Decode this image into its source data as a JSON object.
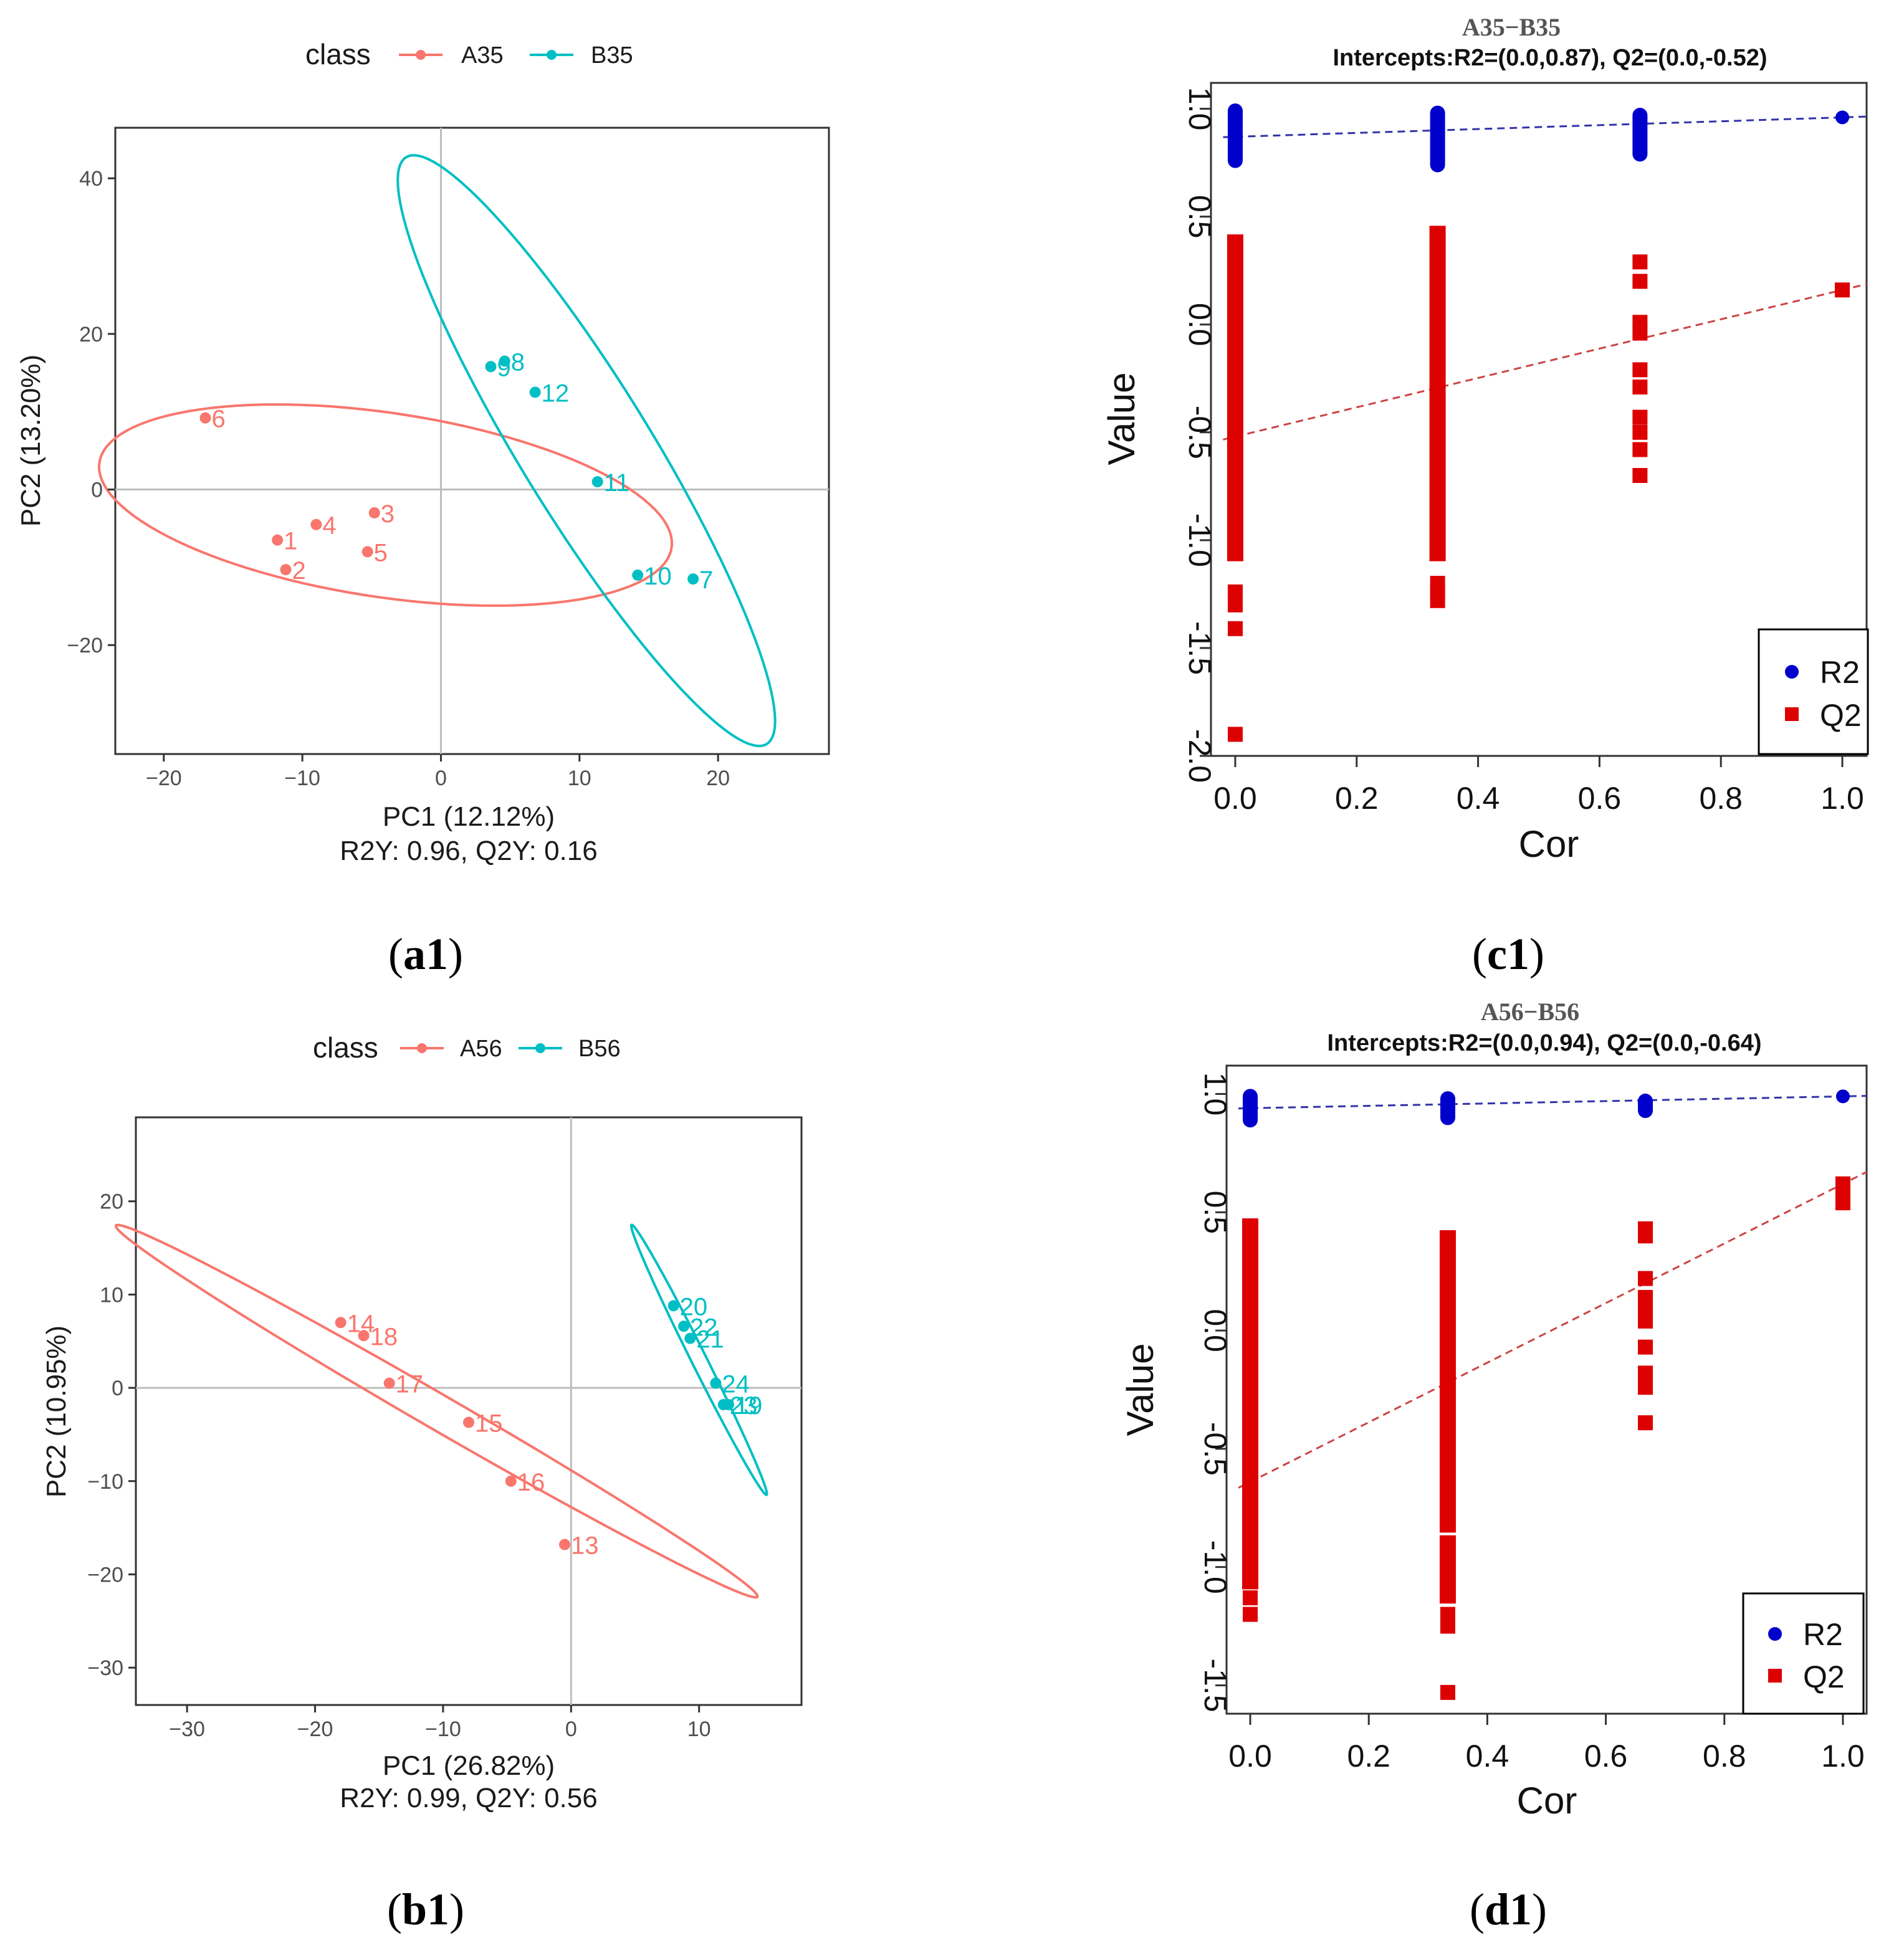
{
  "captions": {
    "a": "a1",
    "b": "b1",
    "c": "c1",
    "d": "d1"
  },
  "chart_data": [
    {
      "id": "a1",
      "type": "scatter",
      "legend_title": "class",
      "series": [
        {
          "name": "A35",
          "color": "#F8766D",
          "points": [
            {
              "label": "1",
              "x": -11.8,
              "y": -6.5
            },
            {
              "label": "2",
              "x": -11.2,
              "y": -10.3
            },
            {
              "label": "3",
              "x": -4.8,
              "y": -3.0
            },
            {
              "label": "4",
              "x": -9.0,
              "y": -4.5
            },
            {
              "label": "5",
              "x": -5.3,
              "y": -8.0
            },
            {
              "label": "6",
              "x": -17.0,
              "y": 9.2
            }
          ],
          "ellipse": {
            "cx": -4.0,
            "cy": -2.0,
            "rx": 21.5,
            "ry": 11.5,
            "angle_deg": -19
          }
        },
        {
          "name": "B35",
          "color": "#00BFC4",
          "points": [
            {
              "label": "7",
              "x": 18.2,
              "y": -11.5
            },
            {
              "label": "8",
              "x": 4.6,
              "y": 16.5
            },
            {
              "label": "9",
              "x": 3.6,
              "y": 15.8
            },
            {
              "label": "10",
              "x": 14.2,
              "y": -11.0
            },
            {
              "label": "11",
              "x": 11.3,
              "y": 1.0
            },
            {
              "label": "12",
              "x": 6.8,
              "y": 12.5
            }
          ],
          "ellipse": {
            "cx": 10.5,
            "cy": 5.0,
            "rx": 40.0,
            "ry": 5.2,
            "angle_deg": -71.5
          }
        }
      ],
      "xlabel": "PC1 (12.12%)",
      "ylabel": "PC2 (13.20%)",
      "footer": "R2Y: 0.96, Q2Y: 0.16",
      "xlim": [
        -23.5,
        28
      ],
      "ylim": [
        -34,
        46.5
      ],
      "xticks": [
        -20,
        -10,
        0,
        10,
        20
      ],
      "xtick_labels": [
        "−20",
        "−10",
        "0",
        "10",
        "20"
      ],
      "yticks": [
        -20,
        0,
        20,
        40
      ],
      "ytick_labels": [
        "−20",
        "0",
        "20",
        "40"
      ],
      "grid": false
    },
    {
      "id": "b1",
      "type": "scatter",
      "legend_title": "class",
      "series": [
        {
          "name": "A56",
          "color": "#F8766D",
          "points": [
            {
              "label": "13",
              "x": -0.5,
              "y": -16.8
            },
            {
              "label": "14",
              "x": -18.0,
              "y": 7.0
            },
            {
              "label": "15",
              "x": -8.0,
              "y": -3.7
            },
            {
              "label": "16",
              "x": -4.7,
              "y": -10.0
            },
            {
              "label": "17",
              "x": -14.2,
              "y": 0.5
            },
            {
              "label": "18",
              "x": -16.2,
              "y": 5.6
            }
          ],
          "ellipse": {
            "cx": -10.5,
            "cy": -2.5,
            "rx": 32.0,
            "ry": 1.7,
            "angle_deg": -38.5
          }
        },
        {
          "name": "B56",
          "color": "#00BFC4",
          "points": [
            {
              "label": "19",
              "x": 12.3,
              "y": -1.8
            },
            {
              "label": "20",
              "x": 8.0,
              "y": 8.8
            },
            {
              "label": "21",
              "x": 9.3,
              "y": 5.3
            },
            {
              "label": "22",
              "x": 8.8,
              "y": 6.6
            },
            {
              "label": "23",
              "x": 11.9,
              "y": -1.8
            },
            {
              "label": "24",
              "x": 11.3,
              "y": 0.5
            }
          ],
          "ellipse": {
            "cx": 10.0,
            "cy": 3.0,
            "rx": 15.4,
            "ry": 0.62,
            "angle_deg": -70
          }
        }
      ],
      "xlabel": "PC1 (26.82%)",
      "ylabel": "PC2 (10.95%)",
      "footer": "R2Y: 0.99, Q2Y: 0.56",
      "xlim": [
        -34,
        18
      ],
      "ylim": [
        -34,
        29
      ],
      "xticks": [
        -30,
        -20,
        -10,
        0,
        10
      ],
      "xtick_labels": [
        "−30",
        "−20",
        "−10",
        "0",
        "10"
      ],
      "yticks": [
        -30,
        -20,
        -10,
        0,
        10,
        20
      ],
      "ytick_labels": [
        "−30",
        "−20",
        "−10",
        "0",
        "10",
        "20"
      ],
      "grid": false
    },
    {
      "id": "c1",
      "type": "scatter",
      "title": "A35−B35",
      "subtitle": "Intercepts:R2=(0.0,0.87), Q2=(0.0,-0.52)",
      "xlabel": "Cor",
      "ylabel": "Value",
      "xlim": [
        -0.04,
        1.04
      ],
      "ylim": [
        -2.0,
        1.12
      ],
      "xticks": [
        0.0,
        0.2,
        0.4,
        0.6,
        0.8,
        1.0
      ],
      "xtick_labels": [
        "0.0",
        "0.2",
        "0.4",
        "0.6",
        "0.8",
        "1.0"
      ],
      "yticks": [
        -2.0,
        -1.5,
        -1.0,
        -0.5,
        0.0,
        0.5,
        1.0
      ],
      "ytick_labels": [
        "-2.0",
        "-1.5",
        "-1.0",
        "-0.5",
        "0.0",
        "0.5",
        "1.0"
      ],
      "legend": [
        "R2",
        "Q2"
      ],
      "legend_position": "bottom-right",
      "series": [
        {
          "name": "R2",
          "color": "#0000CC",
          "marker": "circle",
          "bands": [
            {
              "x": 0.0,
              "from": 0.76,
              "to": 0.99
            },
            {
              "x": 0.3333,
              "from": 0.74,
              "to": 0.98
            },
            {
              "x": 0.6667,
              "from": 0.79,
              "to": 0.97
            }
          ],
          "points": [
            {
              "x": 1.0,
              "y": 0.96
            }
          ],
          "fit": {
            "intercept": 0.87,
            "slope": 0.09
          }
        },
        {
          "name": "Q2",
          "color": "#DD0000",
          "marker": "square",
          "bands": [
            {
              "x": 0.0,
              "from": -1.06,
              "to": 0.38
            },
            {
              "x": 0.3333,
              "from": -1.06,
              "to": 0.42
            }
          ],
          "points": [
            {
              "x": 0.0,
              "y": -1.24
            },
            {
              "x": 0.0,
              "y": -1.3
            },
            {
              "x": 0.0,
              "y": -1.41
            },
            {
              "x": 0.0,
              "y": -1.9
            },
            {
              "x": 0.3333,
              "y": -1.2
            },
            {
              "x": 0.3333,
              "y": -1.24
            },
            {
              "x": 0.3333,
              "y": -1.28
            },
            {
              "x": 0.6667,
              "y": 0.29
            },
            {
              "x": 0.6667,
              "y": 0.2
            },
            {
              "x": 0.6667,
              "y": 0.01
            },
            {
              "x": 0.6667,
              "y": -0.04
            },
            {
              "x": 0.6667,
              "y": -0.21
            },
            {
              "x": 0.6667,
              "y": -0.29
            },
            {
              "x": 0.6667,
              "y": -0.43
            },
            {
              "x": 0.6667,
              "y": -0.5
            },
            {
              "x": 0.6667,
              "y": -0.58
            },
            {
              "x": 0.6667,
              "y": -0.7
            },
            {
              "x": 1.0,
              "y": 0.16
            }
          ],
          "fit": {
            "intercept": -0.52,
            "slope": 0.68
          }
        }
      ]
    },
    {
      "id": "d1",
      "type": "scatter",
      "title": "A56−B56",
      "subtitle": "Intercepts:R2=(0.0,0.94), Q2=(0.0,-0.64)",
      "xlabel": "Cor",
      "ylabel": "Value",
      "xlim": [
        -0.04,
        1.04
      ],
      "ylim": [
        -1.62,
        1.12
      ],
      "xticks": [
        0.0,
        0.2,
        0.4,
        0.6,
        0.8,
        1.0
      ],
      "xtick_labels": [
        "0.0",
        "0.2",
        "0.4",
        "0.6",
        "0.8",
        "1.0"
      ],
      "yticks": [
        -1.5,
        -1.0,
        -0.5,
        0.0,
        0.5,
        1.0
      ],
      "ytick_labels": [
        "-1.5",
        "-1.0",
        "-0.5",
        "0.0",
        "0.5",
        "1.0"
      ],
      "legend": [
        "R2",
        "Q2"
      ],
      "legend_position": "bottom-right",
      "series": [
        {
          "name": "R2",
          "color": "#0000CC",
          "marker": "circle",
          "bands": [
            {
              "x": 0.0,
              "from": 0.89,
              "to": 0.99
            },
            {
              "x": 0.3333,
              "from": 0.9,
              "to": 0.98
            },
            {
              "x": 0.6667,
              "from": 0.93,
              "to": 0.97
            }
          ],
          "points": [
            {
              "x": 1.0,
              "y": 0.99
            }
          ],
          "fit": {
            "intercept": 0.94,
            "slope": 0.05
          }
        },
        {
          "name": "Q2",
          "color": "#DD0000",
          "marker": "square",
          "bands": [
            {
              "x": 0.0,
              "from": -1.06,
              "to": 0.44
            },
            {
              "x": 0.3333,
              "from": -0.82,
              "to": 0.39
            },
            {
              "x": 0.3333,
              "from": -1.12,
              "to": -0.9
            }
          ],
          "points": [
            {
              "x": 0.0,
              "y": -1.13
            },
            {
              "x": 0.0,
              "y": -1.2
            },
            {
              "x": 0.3333,
              "y": -1.2
            },
            {
              "x": 0.3333,
              "y": -1.25
            },
            {
              "x": 0.3333,
              "y": -1.53
            },
            {
              "x": 0.6667,
              "y": 0.43
            },
            {
              "x": 0.6667,
              "y": 0.4
            },
            {
              "x": 0.6667,
              "y": 0.22
            },
            {
              "x": 0.6667,
              "y": 0.14
            },
            {
              "x": 0.6667,
              "y": 0.1
            },
            {
              "x": 0.6667,
              "y": 0.04
            },
            {
              "x": 0.6667,
              "y": -0.07
            },
            {
              "x": 0.6667,
              "y": -0.18
            },
            {
              "x": 0.6667,
              "y": -0.24
            },
            {
              "x": 0.6667,
              "y": -0.39
            },
            {
              "x": 1.0,
              "y": 0.62
            },
            {
              "x": 1.0,
              "y": 0.58
            },
            {
              "x": 1.0,
              "y": 0.54
            }
          ],
          "fit": {
            "intercept": -0.64,
            "slope": 1.26
          }
        }
      ]
    }
  ]
}
